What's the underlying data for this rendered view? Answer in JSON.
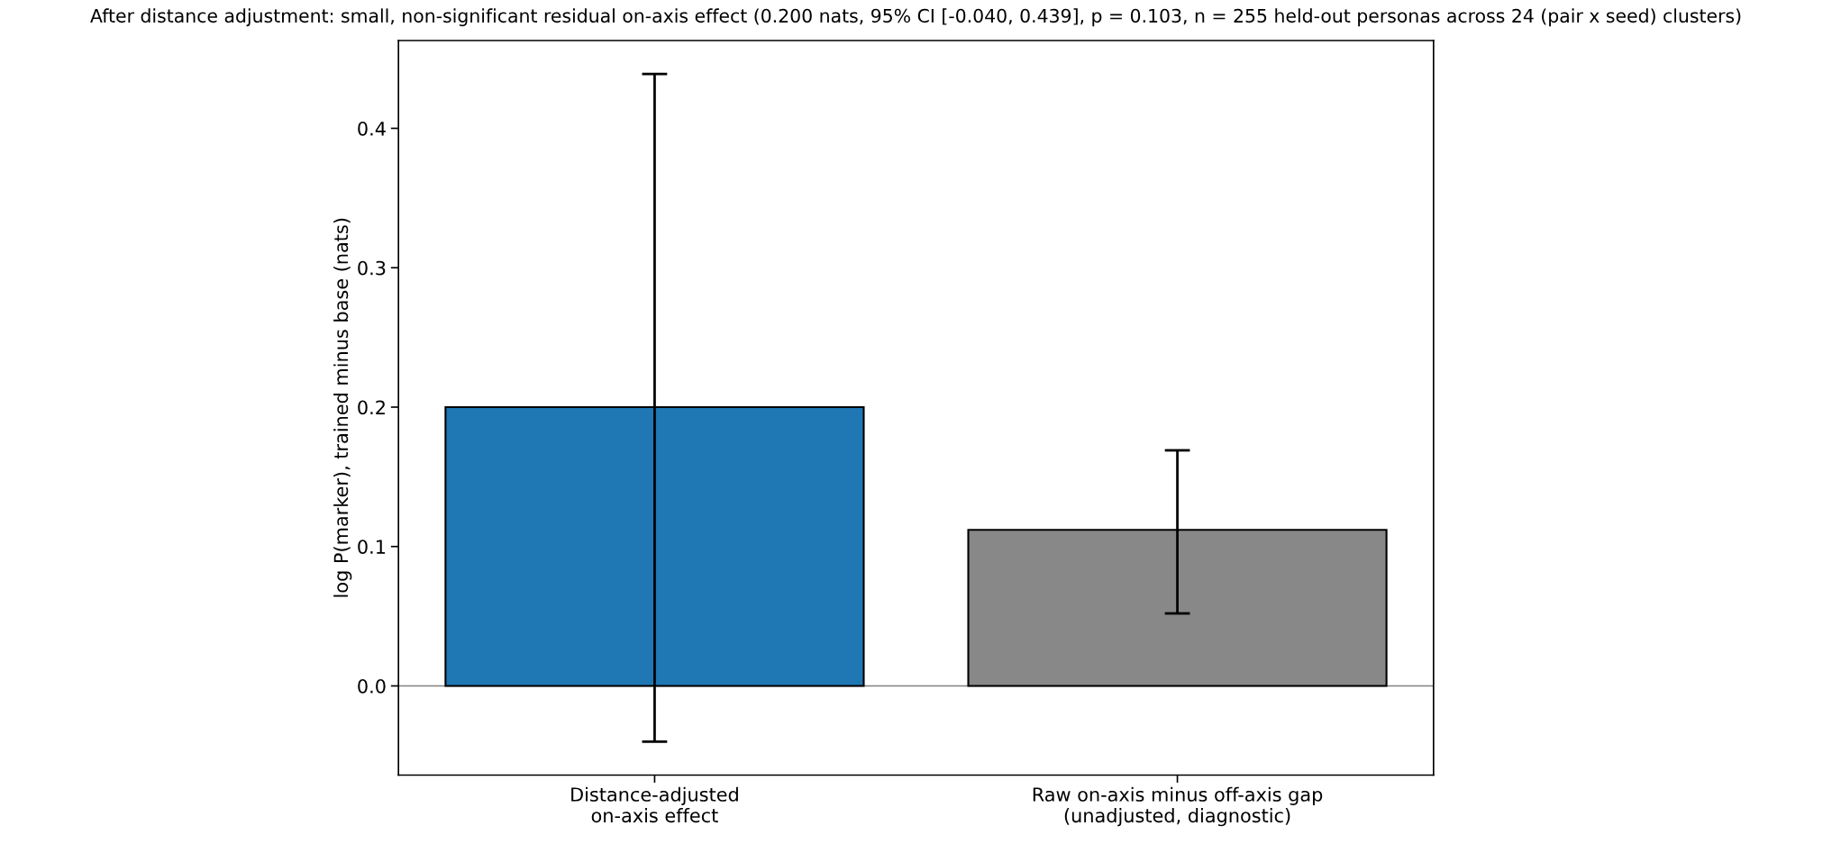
{
  "chart_data": {
    "type": "bar",
    "title": "After distance adjustment: small, non-significant residual on-axis effect (0.200 nats, 95% CI [-0.040, 0.439], p = 0.103, n = 255 held-out personas across 24 (pair x seed) clusters)",
    "ylabel": "log P(marker), trained minus base (nats)",
    "categories": [
      "Distance-adjusted\non-axis effect",
      "Raw on-axis minus off-axis gap\n(unadjusted, diagnostic)"
    ],
    "values": [
      0.2,
      0.112
    ],
    "colors": [
      "#1f77b4",
      "#888888"
    ],
    "errors": [
      [
        -0.04,
        0.439
      ],
      [
        0.052,
        0.169
      ]
    ],
    "ylim": [
      -0.064,
      0.463
    ],
    "yticks": [
      {
        "value": 0,
        "label": "0.0"
      },
      0.1,
      0.2,
      0.3,
      0.4
    ],
    "ref_lines": [
      {
        "axis": "y",
        "value": 0,
        "label": null,
        "color": "#808080"
      }
    ],
    "grid": false
  }
}
